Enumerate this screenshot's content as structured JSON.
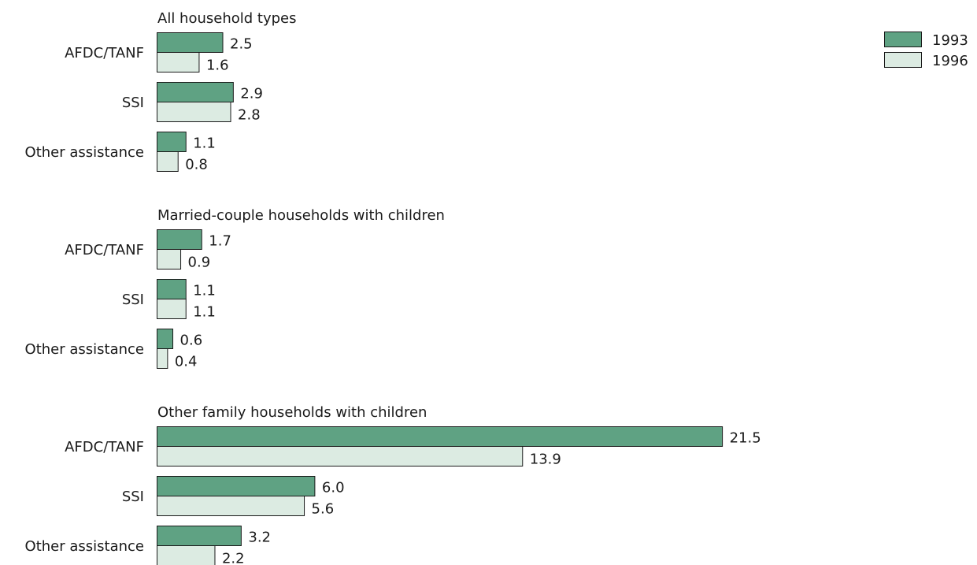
{
  "chart_data": {
    "type": "bar",
    "orientation": "horizontal",
    "legend_position": "top-right",
    "colors": {
      "1993": "#5fa283",
      "1996": "#dcebe2",
      "stroke": "#1a1a1a"
    },
    "legend": [
      "1993",
      "1996"
    ],
    "panels": [
      {
        "title": "All household types",
        "categories": [
          "AFDC/TANF",
          "SSI",
          "Other assistance"
        ],
        "series": [
          {
            "name": "1993",
            "values": [
              2.5,
              2.9,
              1.1
            ],
            "labels": [
              "2.5",
              "2.9",
              "1.1"
            ]
          },
          {
            "name": "1996",
            "values": [
              1.6,
              2.8,
              0.8
            ],
            "labels": [
              "1.6",
              "2.8",
              "0.8"
            ]
          }
        ]
      },
      {
        "title": "Married-couple households with children",
        "categories": [
          "AFDC/TANF",
          "SSI",
          "Other assistance"
        ],
        "series": [
          {
            "name": "1993",
            "values": [
              1.7,
              1.1,
              0.6
            ],
            "labels": [
              "1.7",
              "1.1",
              "0.6"
            ]
          },
          {
            "name": "1996",
            "values": [
              0.9,
              1.1,
              0.4
            ],
            "labels": [
              "0.9",
              "1.1",
              "0.4"
            ]
          }
        ]
      },
      {
        "title": "Other family households with children",
        "categories": [
          "AFDC/TANF",
          "SSI",
          "Other assistance"
        ],
        "series": [
          {
            "name": "1993",
            "values": [
              21.5,
              6.0,
              3.2
            ],
            "labels": [
              "21.5",
              "6.0",
              "3.2"
            ]
          },
          {
            "name": "1996",
            "values": [
              13.9,
              5.6,
              2.2
            ],
            "labels": [
              "13.9",
              "5.6",
              "2.2"
            ]
          }
        ]
      }
    ]
  }
}
